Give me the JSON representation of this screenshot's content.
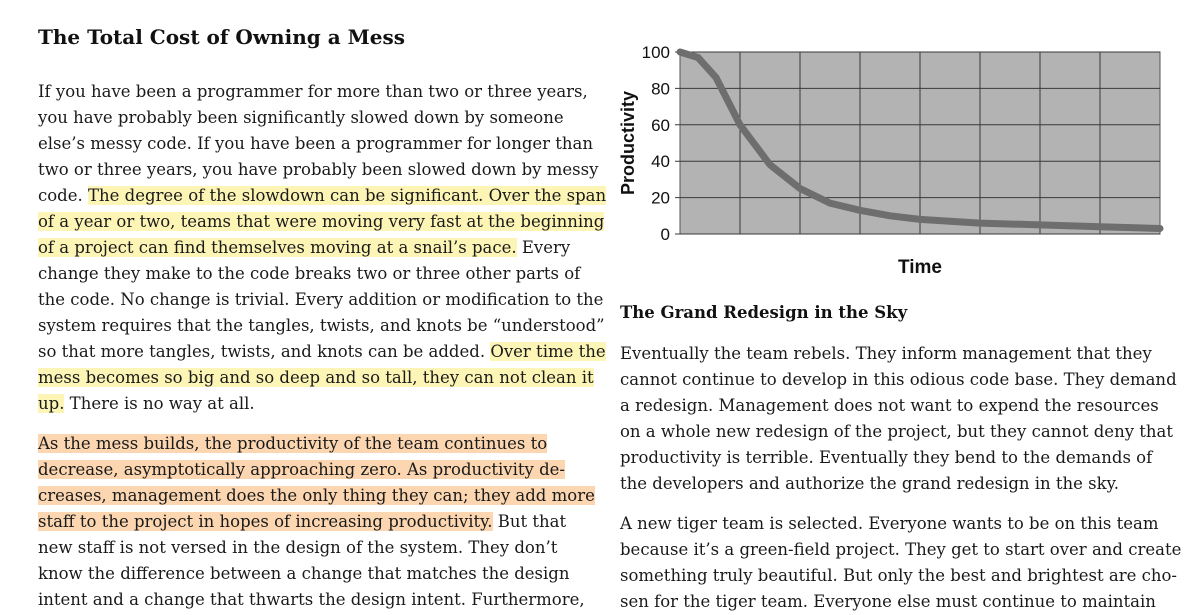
{
  "left": {
    "heading": "The Total Cost of Owning a Mess",
    "para1": [
      [
        {
          "t": "If you have been a programmer for more than two or three years,",
          "h": ""
        }
      ],
      [
        {
          "t": "you have probably been significantly slowed down by someone",
          "h": ""
        }
      ],
      [
        {
          "t": "else’s messy code. If you have been a programmer for longer than",
          "h": ""
        }
      ],
      [
        {
          "t": "two or three years, you have probably been slowed down by messy",
          "h": ""
        }
      ],
      [
        {
          "t": "code. ",
          "h": ""
        },
        {
          "t": "The degree of the slowdown can be significant. Over the span",
          "h": "y"
        }
      ],
      [
        {
          "t": "of a year or two, teams that were moving very fast at the beginning",
          "h": "y"
        }
      ],
      [
        {
          "t": "of a project can find themselves moving at a snail’s pace.",
          "h": "y"
        },
        {
          "t": " Every",
          "h": ""
        }
      ],
      [
        {
          "t": "change they make to the code breaks two or three other parts of",
          "h": ""
        }
      ],
      [
        {
          "t": "the code. No change is trivial. Every addition or modification to the",
          "h": ""
        }
      ],
      [
        {
          "t": "system requires that the tangles, twists, and knots be “understood”",
          "h": ""
        }
      ],
      [
        {
          "t": "so that more tangles, twists, and knots can be added. ",
          "h": ""
        },
        {
          "t": "Over time the",
          "h": "y"
        }
      ],
      [
        {
          "t": "mess becomes so big and so deep and so tall, they can not clean it",
          "h": "y"
        }
      ],
      [
        {
          "t": "up.",
          "h": "y"
        },
        {
          "t": " There is no way at all.",
          "h": ""
        }
      ]
    ],
    "para2": [
      [
        {
          "t": "As the mess builds, the productivity of the team continues to",
          "h": "o"
        }
      ],
      [
        {
          "t": "decrease, asymptotically approaching zero. As productivity de-",
          "h": "o"
        }
      ],
      [
        {
          "t": "creases, management does the only thing they can; they add more",
          "h": "o"
        }
      ],
      [
        {
          "t": "staff to the project in hopes of increasing productivity.",
          "h": "o"
        },
        {
          "t": " But that",
          "h": ""
        }
      ],
      [
        {
          "t": "new staff is not versed in the design of the system. They don’t",
          "h": ""
        }
      ],
      [
        {
          "t": "know the difference between a change that matches the design",
          "h": ""
        }
      ],
      [
        {
          "t": "intent and a change that thwarts the design intent. Furthermore,",
          "h": ""
        }
      ]
    ]
  },
  "right": {
    "heading": "The Grand Redesign in the Sky",
    "para1": [
      "Eventually the team rebels. They inform management that they",
      "cannot continue to develop in this odious code base. They demand",
      "a redesign. Management does not want to expend the resources",
      "on a whole new redesign of the project, but they cannot deny that",
      "productivity is terrible. Eventually they bend to the demands of",
      "the developers and authorize the grand redesign in the sky."
    ],
    "para2": [
      "A new tiger team is selected. Everyone wants to be on this team",
      "because it’s a green-field project. They get to start over and create",
      "something truly beautiful. But only the best and brightest are cho-",
      "sen for the tiger team. Everyone else must continue to maintain"
    ]
  },
  "colors": {
    "highlight_yellow": "#fdf5b5",
    "highlight_orange": "#fbd6b0",
    "chart_background": "#b3b3b3",
    "chart_line": "#6e6e6e"
  },
  "chart_data": {
    "type": "line",
    "title": "",
    "xlabel": "Time",
    "ylabel": "Productivity",
    "ylim": [
      0,
      100
    ],
    "yticks": [
      "0",
      "20",
      "40",
      "60",
      "80",
      "100"
    ],
    "grid": true,
    "x": [
      0,
      0.3,
      0.6,
      1,
      1.5,
      2,
      2.5,
      3,
      3.5,
      4,
      5,
      6,
      7,
      8
    ],
    "series": [
      {
        "values": [
          100,
          97,
          86,
          60,
          38,
          25,
          17,
          13,
          10,
          8,
          6,
          5,
          4,
          3
        ]
      }
    ]
  }
}
